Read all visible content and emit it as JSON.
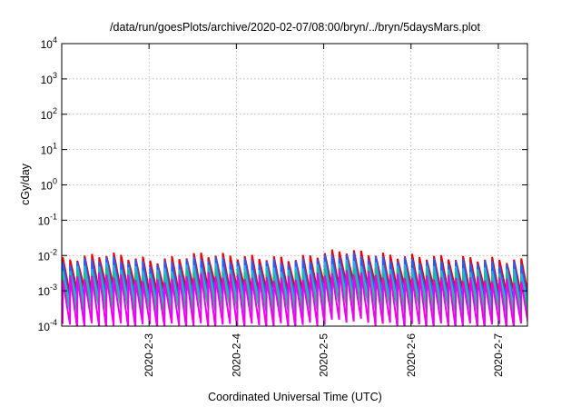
{
  "chart_data": {
    "type": "line",
    "title": "/data/run/goesPlots/archive/2020-02-07/08:00/bryn/../bryn/5daysMars.plot",
    "xlabel": "Coordinated Universal Time (UTC)",
    "ylabel": "cGy/day",
    "y_scale": "log",
    "ylim": [
      0.0001,
      10000
    ],
    "y_ticks": [
      {
        "base": "10",
        "exp": "-4",
        "value": 0.0001
      },
      {
        "base": "10",
        "exp": "-3",
        "value": 0.001
      },
      {
        "base": "10",
        "exp": "-2",
        "value": 0.01
      },
      {
        "base": "10",
        "exp": "-1",
        "value": 0.1
      },
      {
        "base": "10",
        "exp": "0",
        "value": 1
      },
      {
        "base": "10",
        "exp": "1",
        "value": 10
      },
      {
        "base": "10",
        "exp": "2",
        "value": 100
      },
      {
        "base": "10",
        "exp": "3",
        "value": 1000
      },
      {
        "base": "10",
        "exp": "4",
        "value": 10000
      }
    ],
    "x_range": [
      "2020-02-02 00:00",
      "2020-02-07 08:00"
    ],
    "x_ticks": [
      {
        "label": "2020-2-3",
        "value": "2020-02-03 00:00"
      },
      {
        "label": "2020-2-4",
        "value": "2020-02-04 00:00"
      },
      {
        "label": "2020-2-5",
        "value": "2020-02-05 00:00"
      },
      {
        "label": "2020-2-6",
        "value": "2020-02-06 00:00"
      },
      {
        "label": "2020-2-7",
        "value": "2020-02-07 00:00"
      }
    ],
    "grid": true,
    "legend": "none",
    "sawtooth_period_hours": 2,
    "series": [
      {
        "color": "#ee0000",
        "peak": [
          0.0075,
          0.011,
          0.007,
          0.011,
          0.009,
          0.008,
          0.014,
          0.01,
          0.009,
          0.008,
          0.007
        ],
        "trough": [
          0.0009,
          0.0012,
          0.0008,
          0.0012,
          0.001,
          0.0009,
          0.0015,
          0.0011,
          0.001,
          0.0009,
          0.0008
        ]
      },
      {
        "color": "#1f5fff",
        "peak": [
          0.006,
          0.0085,
          0.0055,
          0.0085,
          0.007,
          0.0065,
          0.011,
          0.008,
          0.007,
          0.0065,
          0.0055
        ],
        "trough": [
          0.0005,
          0.0007,
          0.00045,
          0.0007,
          0.0006,
          0.0005,
          0.0009,
          0.0006,
          0.0006,
          0.0005,
          0.00045
        ]
      },
      {
        "color": "#29b1d6",
        "peak": [
          0.004,
          0.0055,
          0.0035,
          0.0055,
          0.0045,
          0.004,
          0.007,
          0.005,
          0.0045,
          0.004,
          0.0035
        ],
        "trough": [
          0.00035,
          0.00045,
          0.0003,
          0.00045,
          0.0004,
          0.00035,
          0.0006,
          0.0004,
          0.0004,
          0.00035,
          0.0003
        ]
      },
      {
        "color": "#18c08a",
        "peak": [
          0.003,
          0.004,
          0.0026,
          0.004,
          0.0033,
          0.003,
          0.005,
          0.0036,
          0.0033,
          0.003,
          0.0026
        ],
        "trough": [
          0.00022,
          0.0003,
          0.0002,
          0.0003,
          0.00026,
          0.00022,
          0.0004,
          0.00028,
          0.00026,
          0.00022,
          0.0002
        ]
      },
      {
        "color": "#ee00ee",
        "peak": [
          0.0022,
          0.003,
          0.0019,
          0.003,
          0.0025,
          0.0022,
          0.0038,
          0.0027,
          0.0025,
          0.0022,
          0.0019
        ],
        "trough": [
          0.0001,
          0.0001,
          0.0001,
          0.0001,
          0.0001,
          0.0001,
          0.00015,
          0.0001,
          0.0001,
          0.0001,
          0.0001
        ]
      }
    ]
  }
}
